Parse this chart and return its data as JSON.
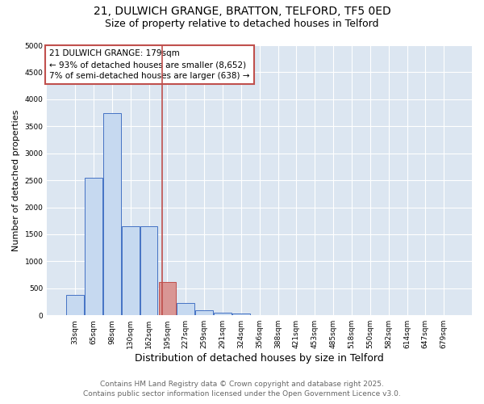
{
  "title_line1": "21, DULWICH GRANGE, BRATTON, TELFORD, TF5 0ED",
  "title_line2": "Size of property relative to detached houses in Telford",
  "categories": [
    "33sqm",
    "65sqm",
    "98sqm",
    "130sqm",
    "162sqm",
    "195sqm",
    "227sqm",
    "259sqm",
    "291sqm",
    "324sqm",
    "356sqm",
    "388sqm",
    "421sqm",
    "453sqm",
    "485sqm",
    "518sqm",
    "550sqm",
    "582sqm",
    "614sqm",
    "647sqm",
    "679sqm"
  ],
  "values": [
    380,
    2550,
    3750,
    1650,
    1650,
    620,
    230,
    100,
    50,
    30,
    0,
    0,
    0,
    0,
    0,
    0,
    0,
    0,
    0,
    0,
    0
  ],
  "highlight_index": 5,
  "highlight_color": "#c0504d",
  "highlight_bar_color": "#d99694",
  "bar_color": "#c6d9f0",
  "bar_edge_color": "#4472c4",
  "vline_x_data": 4.72,
  "vline_color": "#c0504d",
  "ylabel": "Number of detached properties",
  "xlabel": "Distribution of detached houses by size in Telford",
  "ylim": [
    0,
    5000
  ],
  "yticks": [
    0,
    500,
    1000,
    1500,
    2000,
    2500,
    3000,
    3500,
    4000,
    4500,
    5000
  ],
  "annotation_title": "21 DULWICH GRANGE: 179sqm",
  "annotation_line2": "← 93% of detached houses are smaller (8,652)",
  "annotation_line3": "7% of semi-detached houses are larger (638) →",
  "annotation_box_color": "#c0504d",
  "footer_line1": "Contains HM Land Registry data © Crown copyright and database right 2025.",
  "footer_line2": "Contains public sector information licensed under the Open Government Licence v3.0.",
  "plot_bg_color": "#dce6f1",
  "fig_bg_color": "#ffffff",
  "grid_color": "#ffffff",
  "title_fontsize": 10,
  "subtitle_fontsize": 9,
  "xlabel_fontsize": 9,
  "ylabel_fontsize": 8,
  "tick_fontsize": 6.5,
  "footer_fontsize": 6.5,
  "annotation_fontsize": 7.5
}
